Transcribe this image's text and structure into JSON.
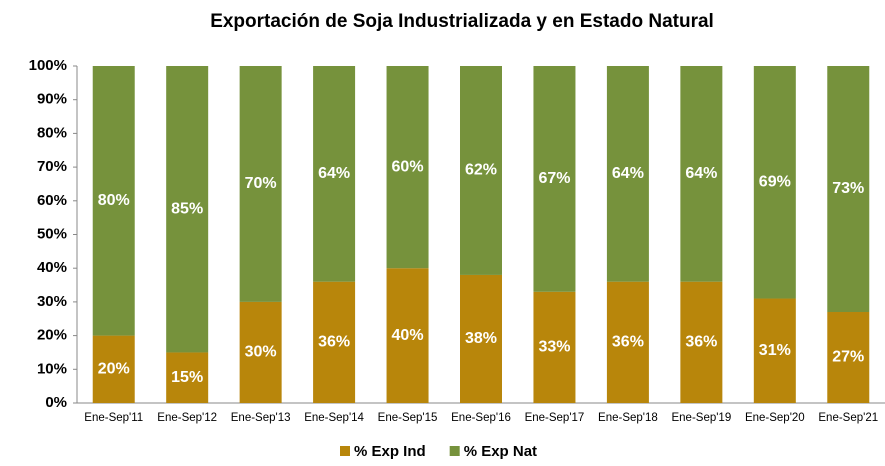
{
  "chart_data": {
    "type": "stacked_bar_100",
    "title": "Exportación de Soja Industrializada y en Estado Natural",
    "categories": [
      "Ene-Sep'11",
      "Ene-Sep'12",
      "Ene-Sep'13",
      "Ene-Sep'14",
      "Ene-Sep'15",
      "Ene-Sep'16",
      "Ene-Sep'17",
      "Ene-Sep'18",
      "Ene-Sep'19",
      "Ene-Sep'20",
      "Ene-Sep'21"
    ],
    "series": [
      {
        "name": "% Exp Ind",
        "color": "#b8860b",
        "values": [
          20,
          15,
          30,
          36,
          40,
          38,
          33,
          36,
          36,
          31,
          27
        ],
        "value_labels": [
          "20%",
          "15%",
          "30%",
          "36%",
          "40%",
          "38%",
          "33%",
          "36%",
          "36%",
          "31%",
          "27%"
        ]
      },
      {
        "name": "% Exp Nat",
        "color": "#76923c",
        "values": [
          80,
          85,
          70,
          64,
          60,
          62,
          67,
          64,
          64,
          69,
          73
        ],
        "value_labels": [
          "80%",
          "85%",
          "70%",
          "64%",
          "60%",
          "62%",
          "67%",
          "64%",
          "64%",
          "69%",
          "73%"
        ]
      }
    ],
    "ylim": [
      0,
      100
    ],
    "yticks": [
      {
        "value": 0,
        "label": "0%"
      },
      {
        "value": 10,
        "label": "10%"
      },
      {
        "value": 20,
        "label": "20%"
      },
      {
        "value": 30,
        "label": "30%"
      },
      {
        "value": 40,
        "label": "40%"
      },
      {
        "value": 50,
        "label": "50%"
      },
      {
        "value": 60,
        "label": "60%"
      },
      {
        "value": 70,
        "label": "70%"
      },
      {
        "value": 80,
        "label": "80%"
      },
      {
        "value": 90,
        "label": "90%"
      },
      {
        "value": 100,
        "label": "100%"
      }
    ],
    "grid": false
  }
}
